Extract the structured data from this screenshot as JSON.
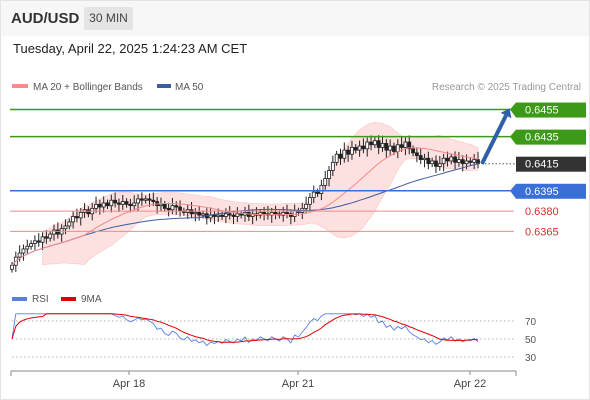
{
  "header": {
    "symbol": "AUD/USD",
    "timeframe": "30 MIN"
  },
  "timestamp": "Tuesday, April 22, 2025 1:24:23 AM CET",
  "legend": {
    "ma20_label": "MA 20 + Bollinger Bands",
    "ma50_label": "MA 50",
    "credit": "Research © 2025 Trading Central",
    "rsi_label": "RSI",
    "rsi9ma_label": "9MA"
  },
  "colors": {
    "resistance": "#3c9a18",
    "support_blue": "#3a6fd8",
    "support_red": "#ef8a8a",
    "red_text": "#d92b2b",
    "bollinger_fill": "#fde0e0",
    "ma20": "#f48a8a",
    "ma50": "#3a5ea0",
    "rsi": "#5b7fe0",
    "rsi9ma": "#e00000",
    "current_price_bg": "#333333",
    "arrow": "#2e5fa8",
    "candle": "#222222"
  },
  "chart_data": [
    {
      "type": "candlestick",
      "name": "price",
      "x_ticks": [
        "Apr 18",
        "Apr 21",
        "Apr 22"
      ],
      "current_price": "0.6415",
      "levels": [
        {
          "value": "0.6455",
          "kind": "resistance",
          "label_style": "green-box"
        },
        {
          "value": "0.6435",
          "kind": "resistance",
          "label_style": "green-box"
        },
        {
          "value": "0.6395",
          "kind": "pivot",
          "label_style": "blue-box"
        },
        {
          "value": "0.6380",
          "kind": "support",
          "label_style": "red-text"
        },
        {
          "value": "0.6365",
          "kind": "support",
          "label_style": "red-text"
        }
      ],
      "ylim": [
        0.6335,
        0.6465
      ],
      "close": [
        0.634,
        0.6346,
        0.6349,
        0.6352,
        0.6354,
        0.6356,
        0.6358,
        0.6357,
        0.6361,
        0.636,
        0.6363,
        0.6366,
        0.6363,
        0.6367,
        0.6369,
        0.6372,
        0.6376,
        0.6375,
        0.6379,
        0.6381,
        0.6378,
        0.6382,
        0.6385,
        0.6383,
        0.6386,
        0.6384,
        0.6388,
        0.6386,
        0.6385,
        0.6387,
        0.6385,
        0.6384,
        0.6386,
        0.6389,
        0.6388,
        0.6389,
        0.6388,
        0.6387,
        0.6384,
        0.6385,
        0.6382,
        0.6381,
        0.6384,
        0.6383,
        0.638,
        0.6379,
        0.6381,
        0.6378,
        0.6379,
        0.6377,
        0.6378,
        0.6375,
        0.6377,
        0.6376,
        0.6377,
        0.6376,
        0.6378,
        0.6377,
        0.6376,
        0.6378,
        0.6377,
        0.6379,
        0.6376,
        0.6378,
        0.6377,
        0.6379,
        0.6378,
        0.6377,
        0.6379,
        0.6378,
        0.6377,
        0.6379,
        0.6378,
        0.6376,
        0.638,
        0.6379,
        0.6382,
        0.6385,
        0.639,
        0.6394,
        0.6393,
        0.6399,
        0.6404,
        0.641,
        0.6416,
        0.6422,
        0.6419,
        0.6425,
        0.6422,
        0.6427,
        0.6425,
        0.6428,
        0.6426,
        0.6431,
        0.6429,
        0.6432,
        0.6427,
        0.643,
        0.6425,
        0.6428,
        0.6424,
        0.6429,
        0.6427,
        0.6431,
        0.6426,
        0.6423,
        0.6421,
        0.6418,
        0.6419,
        0.6415,
        0.6417,
        0.6413,
        0.6415,
        0.6419,
        0.6417,
        0.642,
        0.6416,
        0.6418,
        0.6415,
        0.6417,
        0.6416,
        0.6418,
        0.6415
      ]
    },
    {
      "type": "line",
      "name": "rsi-panel",
      "yticks": [
        "70",
        "50",
        "30"
      ],
      "x_ticks": [
        "Apr 18",
        "Apr 21",
        "Apr 22"
      ],
      "ylim": [
        20,
        80
      ]
    }
  ]
}
